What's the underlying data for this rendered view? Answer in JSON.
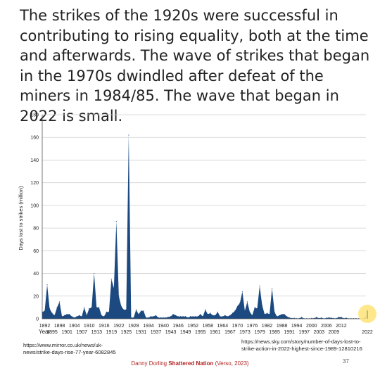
{
  "slide": {
    "heading": "The strikes of the 1920s were successful in contributing to rising equality, both at the time and afterwards. The wave of strikes that began in the 1970s dwindled after defeat of the miners in 1984/85. The wave that began in 2022 is small.",
    "source_left": "https://www.mirror.co.uk/news/uk-news/strike-days-rise-77-year-6082845",
    "source_right": "https://news.sky.com/story/number-of-days-lost-to-strike-action-in-2022-highest-since-1989-12810216",
    "footer_author": "Danny Dorling ",
    "footer_book": "Shattered Nation",
    "footer_rest": " (Verso, 2023)",
    "slide_number": "37",
    "colors": {
      "area": "#1c4a80",
      "highlight": "#ffe680",
      "footer": "#b22222"
    }
  },
  "chart_data": {
    "type": "area",
    "ylabel": "Days lost to strikes (million)",
    "xlabel": "Year",
    "ylim": [
      0,
      180
    ],
    "yticks": [
      0,
      20,
      40,
      60,
      80,
      100,
      120,
      140,
      160,
      180
    ],
    "xtick_labels_row1": [
      "1892",
      "1898",
      "1904",
      "1910",
      "1916",
      "1922",
      "1928",
      "1934",
      "1940",
      "1946",
      "1952",
      "1958",
      "1964",
      "1970",
      "1976",
      "1982",
      "1988",
      "1994",
      "2000",
      "2006",
      "2012"
    ],
    "xtick_labels_row2": [
      "1895",
      "1901",
      "1907",
      "1913",
      "1919",
      "1925",
      "1931",
      "1937",
      "1943",
      "1949",
      "1955",
      "1961",
      "1967",
      "1973",
      "1979",
      "1985",
      "1991",
      "1997",
      "2003",
      "2009"
    ],
    "highlight_label": "2022",
    "grid": true,
    "x": [
      1891,
      1892,
      1893,
      1894,
      1895,
      1896,
      1897,
      1898,
      1899,
      1900,
      1901,
      1902,
      1903,
      1904,
      1905,
      1906,
      1907,
      1908,
      1909,
      1910,
      1911,
      1912,
      1913,
      1914,
      1915,
      1916,
      1917,
      1918,
      1919,
      1920,
      1921,
      1922,
      1923,
      1924,
      1925,
      1926,
      1927,
      1928,
      1929,
      1930,
      1931,
      1932,
      1933,
      1934,
      1935,
      1936,
      1937,
      1938,
      1939,
      1940,
      1941,
      1942,
      1943,
      1944,
      1945,
      1946,
      1947,
      1948,
      1949,
      1950,
      1951,
      1952,
      1953,
      1954,
      1955,
      1956,
      1957,
      1958,
      1959,
      1960,
      1961,
      1962,
      1963,
      1964,
      1965,
      1966,
      1967,
      1968,
      1969,
      1970,
      1971,
      1972,
      1973,
      1974,
      1975,
      1976,
      1977,
      1978,
      1979,
      1980,
      1981,
      1982,
      1983,
      1984,
      1985,
      1986,
      1987,
      1988,
      1989,
      1990,
      1991,
      1992,
      1993,
      1994,
      1995,
      1996,
      1997,
      1998,
      1999,
      2000,
      2001,
      2002,
      2003,
      2004,
      2005,
      2006,
      2007,
      2008,
      2009,
      2010,
      2011,
      2012,
      2013,
      2014,
      2015,
      2016,
      2017,
      2018,
      2019,
      2020,
      2021,
      2022
    ],
    "values": [
      6,
      7,
      30,
      9,
      5,
      3,
      10,
      15,
      2,
      3,
      4,
      4,
      2,
      1,
      2,
      3,
      2,
      10,
      3,
      9,
      10,
      40,
      10,
      10,
      3,
      2,
      6,
      6,
      35,
      27,
      86,
      20,
      11,
      8,
      8,
      162,
      1,
      1,
      8,
      4,
      7,
      7,
      1,
      1,
      2,
      2,
      3,
      1,
      1,
      1,
      1,
      1.5,
      2,
      4,
      3,
      2,
      2,
      2,
      2,
      1,
      2,
      2,
      2,
      2,
      4,
      2,
      8,
      4,
      5,
      3,
      3,
      6,
      2,
      2,
      3,
      2,
      3,
      5,
      7,
      11,
      14,
      24,
      7,
      15,
      6,
      3,
      10,
      9,
      29,
      12,
      4,
      5,
      4,
      27,
      6,
      2,
      3,
      4,
      4,
      2,
      1,
      0.5,
      0.6,
      0.3,
      0.4,
      1.3,
      0.2,
      0.3,
      0.2,
      0.5,
      0.5,
      1.3,
      0.5,
      0.9,
      0.2,
      0.7,
      1,
      0.8,
      0.5,
      0.4,
      1.4,
      1.4,
      0.4,
      0.8,
      0.2,
      0.3,
      0.3,
      0.3,
      0.2,
      0.2,
      0.1,
      2.5
    ]
  }
}
